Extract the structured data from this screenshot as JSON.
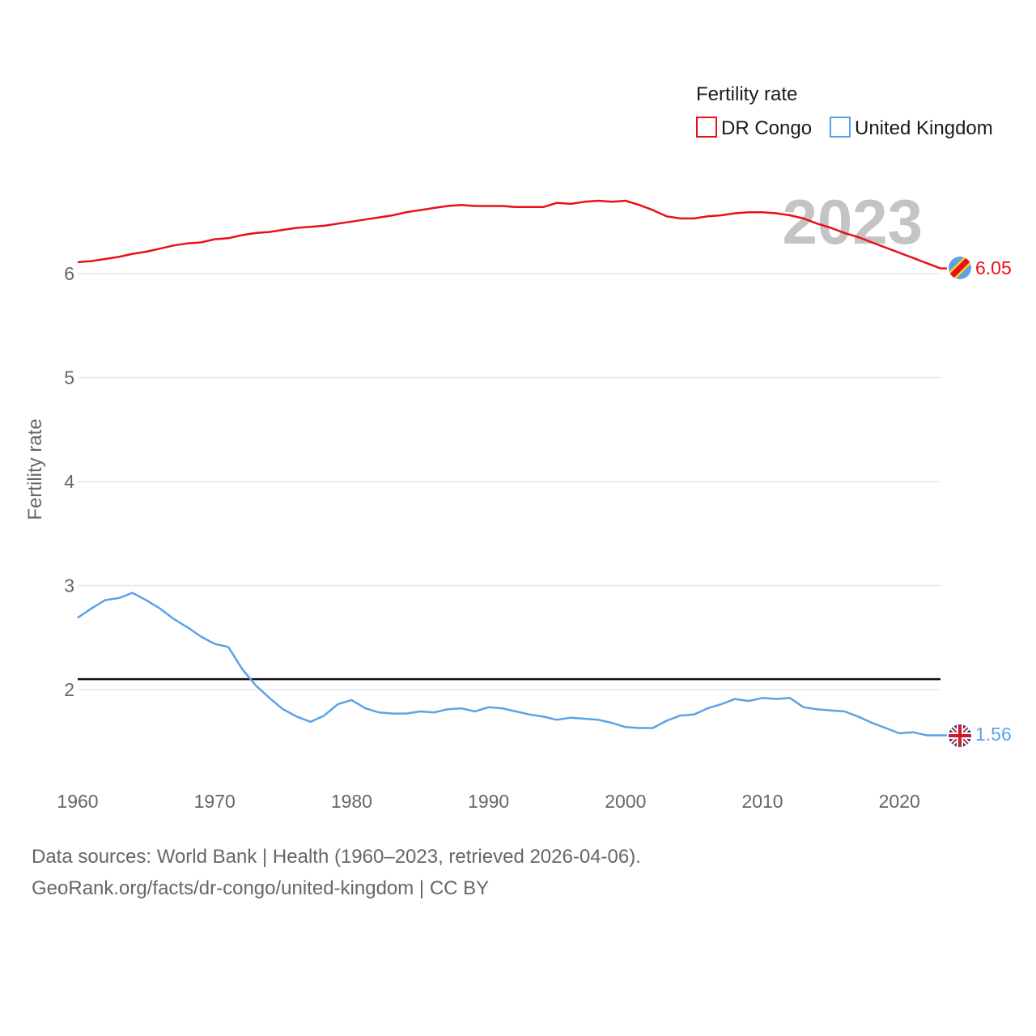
{
  "chart_data": {
    "type": "line",
    "ylabel": "Fertility rate",
    "legend_title": "Fertility rate",
    "legend_position": "top-right",
    "year_label": "2023",
    "grid": true,
    "xlim": [
      1960,
      2023
    ],
    "ylim": [
      1.2,
      6.8
    ],
    "x_ticks": [
      1960,
      1970,
      1980,
      1990,
      2000,
      2010,
      2020
    ],
    "y_ticks": [
      2,
      3,
      4,
      5,
      6
    ],
    "reference_line": {
      "y": 2.1
    },
    "x": [
      1960,
      1961,
      1962,
      1963,
      1964,
      1965,
      1966,
      1967,
      1968,
      1969,
      1970,
      1971,
      1972,
      1973,
      1974,
      1975,
      1976,
      1977,
      1978,
      1979,
      1980,
      1981,
      1982,
      1983,
      1984,
      1985,
      1986,
      1987,
      1988,
      1989,
      1990,
      1991,
      1992,
      1993,
      1994,
      1995,
      1996,
      1997,
      1998,
      1999,
      2000,
      2001,
      2002,
      2003,
      2004,
      2005,
      2006,
      2007,
      2008,
      2009,
      2010,
      2011,
      2012,
      2013,
      2014,
      2015,
      2016,
      2017,
      2018,
      2019,
      2020,
      2021,
      2022,
      2023
    ],
    "series": [
      {
        "name": "DR Congo",
        "color": "#e8101a",
        "end_label": "6.05",
        "values": [
          6.11,
          6.12,
          6.14,
          6.16,
          6.19,
          6.21,
          6.24,
          6.27,
          6.29,
          6.3,
          6.33,
          6.34,
          6.37,
          6.39,
          6.4,
          6.42,
          6.44,
          6.45,
          6.46,
          6.48,
          6.5,
          6.52,
          6.54,
          6.56,
          6.59,
          6.61,
          6.63,
          6.65,
          6.66,
          6.65,
          6.65,
          6.65,
          6.64,
          6.64,
          6.64,
          6.68,
          6.67,
          6.69,
          6.7,
          6.69,
          6.7,
          6.66,
          6.61,
          6.55,
          6.53,
          6.53,
          6.55,
          6.56,
          6.58,
          6.59,
          6.59,
          6.58,
          6.56,
          6.53,
          6.48,
          6.44,
          6.39,
          6.35,
          6.3,
          6.25,
          6.2,
          6.15,
          6.1,
          6.05
        ]
      },
      {
        "name": "United Kingdom",
        "color": "#5ba3e6",
        "end_label": "1.56",
        "values": [
          2.69,
          2.78,
          2.86,
          2.88,
          2.93,
          2.86,
          2.78,
          2.68,
          2.6,
          2.51,
          2.44,
          2.41,
          2.2,
          2.04,
          1.92,
          1.81,
          1.74,
          1.69,
          1.75,
          1.86,
          1.9,
          1.82,
          1.78,
          1.77,
          1.77,
          1.79,
          1.78,
          1.81,
          1.82,
          1.79,
          1.83,
          1.82,
          1.79,
          1.76,
          1.74,
          1.71,
          1.73,
          1.72,
          1.71,
          1.68,
          1.64,
          1.63,
          1.63,
          1.7,
          1.75,
          1.76,
          1.82,
          1.86,
          1.91,
          1.89,
          1.92,
          1.91,
          1.92,
          1.83,
          1.81,
          1.8,
          1.79,
          1.74,
          1.68,
          1.63,
          1.58,
          1.59,
          1.56,
          1.56
        ]
      }
    ]
  },
  "source": {
    "line1": "Data sources: World Bank | Health (1960–2023, retrieved 2026-04-06).",
    "line2": "GeoRank.org/facts/dr-congo/united-kingdom | CC BY"
  },
  "icons": {
    "dr_congo": "dr-congo-flag-icon",
    "united_kingdom": "united-kingdom-flag-icon"
  }
}
